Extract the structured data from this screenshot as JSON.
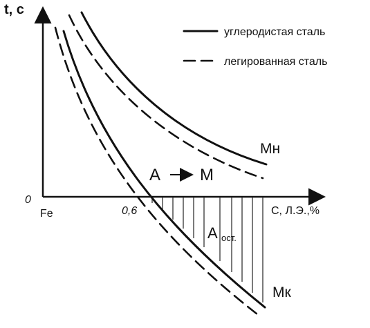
{
  "axes": {
    "y_label": "t, с",
    "origin": "0",
    "x_start": "Fe",
    "x_mark": "0,6",
    "x_label": "С, Л.Э.,%"
  },
  "legend": {
    "items": [
      {
        "label": "углеродистая сталь"
      },
      {
        "label": "легированная сталь"
      }
    ]
  },
  "curves": {
    "start": "Мн",
    "finish": "Мк"
  },
  "transformation": {
    "from": "А",
    "to": "М"
  },
  "retained": {
    "main": "А",
    "sub": "ост."
  }
}
